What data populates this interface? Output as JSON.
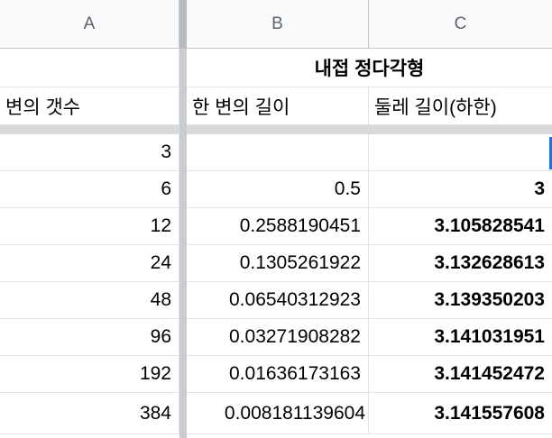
{
  "columns": {
    "a": "A",
    "b": "B",
    "c": "C"
  },
  "title_row": {
    "merged_title": "내접 정다각형"
  },
  "header_row": {
    "a": "변의 갯수",
    "b": "한 변의 길이",
    "c": "둘레 길이(하한)"
  },
  "rows": [
    {
      "a": "3",
      "b": "",
      "c": ""
    },
    {
      "a": "6",
      "b": "0.5",
      "c": "3"
    },
    {
      "a": "12",
      "b": "0.2588190451",
      "c": "3.105828541"
    },
    {
      "a": "24",
      "b": "0.1305261922",
      "c": "3.132628613"
    },
    {
      "a": "48",
      "b": "0.06540312923",
      "c": "3.139350203"
    },
    {
      "a": "96",
      "b": "0.03271908282",
      "c": "3.141031951"
    },
    {
      "a": "192",
      "b": "0.01636173163",
      "c": "3.141452472"
    },
    {
      "a": "384",
      "b": "0.008181139604",
      "c": "3.141557608"
    }
  ]
}
